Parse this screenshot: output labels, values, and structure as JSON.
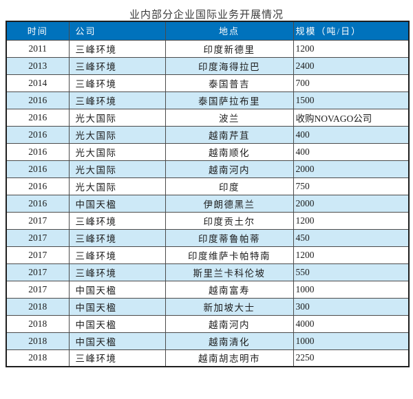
{
  "title": "业内部分企业国际业务开展情况",
  "table": {
    "headers": [
      "时间",
      "公司",
      "地点",
      "规模（吨/日）"
    ],
    "rows": [
      [
        "2011",
        "三峰环境",
        "印度新德里",
        "1200"
      ],
      [
        "2013",
        "三峰环境",
        "印度海得拉巴",
        "2400"
      ],
      [
        "2014",
        "三峰环境",
        "泰国普吉",
        "700"
      ],
      [
        "2016",
        "三峰环境",
        "泰国萨拉布里",
        "1500"
      ],
      [
        "2016",
        "光大国际",
        "波兰",
        "收购NOVAGO公司"
      ],
      [
        "2016",
        "光大国际",
        "越南芹苴",
        "400"
      ],
      [
        "2016",
        "光大国际",
        "越南顺化",
        "400"
      ],
      [
        "2016",
        "光大国际",
        "越南河内",
        "2000"
      ],
      [
        "2016",
        "光大国际",
        "印度",
        "750"
      ],
      [
        "2016",
        "中国天楹",
        "伊朗德黑兰",
        "2000"
      ],
      [
        "2017",
        "三峰环境",
        "印度贡土尔",
        "1200"
      ],
      [
        "2017",
        "三峰环境",
        "印度蒂鲁帕蒂",
        "450"
      ],
      [
        "2017",
        "三峰环境",
        "印度维萨卡帕特南",
        "1200"
      ],
      [
        "2017",
        "三峰环境",
        "斯里兰卡科伦坡",
        "550"
      ],
      [
        "2017",
        "中国天楹",
        "越南富寿",
        "1000"
      ],
      [
        "2018",
        "中国天楹",
        "新加坡大士",
        "300"
      ],
      [
        "2018",
        "中国天楹",
        "越南河内",
        "4000"
      ],
      [
        "2018",
        "中国天楹",
        "越南清化",
        "1000"
      ],
      [
        "2018",
        "三峰环境",
        "越南胡志明市",
        "2250"
      ]
    ]
  },
  "colors": {
    "header_bg": "#0072bc",
    "row_alt_bg": "#cde9f7",
    "border_inner": "#4a4a4a",
    "border_outer": "#1e1e1e",
    "header_text": "#ffffff",
    "body_text": "#1c1c1c",
    "title_text": "#3b3b3b"
  }
}
